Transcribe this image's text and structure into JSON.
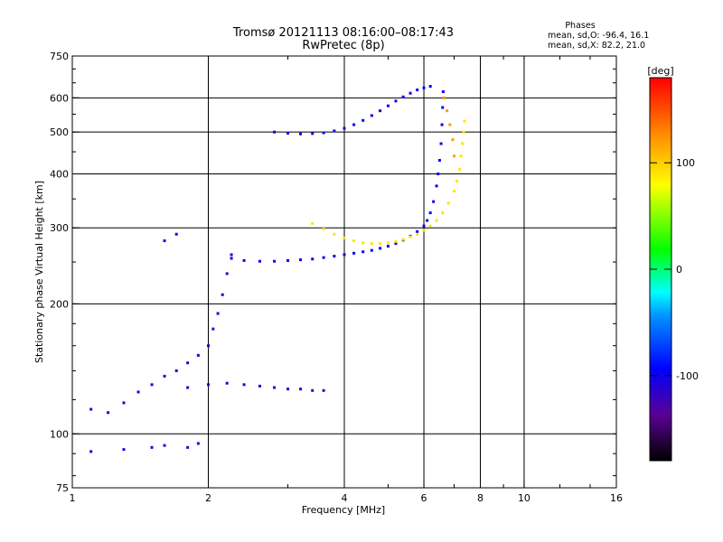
{
  "chart_data": {
    "type": "scatter",
    "title": "Tromsø 20121113 08:16:00–08:17:43",
    "subtitle": "RwPretec (8p)",
    "xlabel": "Frequency [MHz]",
    "ylabel": "Stationary phase Virtual Height [km]",
    "x_scale": "log",
    "y_scale": "log",
    "xlim": [
      1,
      16
    ],
    "ylim": [
      75,
      750
    ],
    "x_ticks": [
      {
        "value": 1,
        "label": "1"
      },
      {
        "value": 2,
        "label": "2"
      },
      {
        "value": 4,
        "label": "4"
      },
      {
        "value": 6,
        "label": "6"
      },
      {
        "value": 8,
        "label": "8"
      },
      {
        "value": 10,
        "label": "10"
      },
      {
        "value": 16,
        "label": "16"
      }
    ],
    "y_ticks": [
      {
        "value": 75,
        "label": "75"
      },
      {
        "value": 100,
        "label": "100"
      },
      {
        "value": 200,
        "label": "200"
      },
      {
        "value": 300,
        "label": "300"
      },
      {
        "value": 400,
        "label": "400"
      },
      {
        "value": 500,
        "label": "500"
      },
      {
        "value": 600,
        "label": "600"
      },
      {
        "value": 750,
        "label": "750"
      }
    ],
    "x_gridlines": [
      2,
      4,
      6,
      8,
      10
    ],
    "y_gridlines": [
      100,
      200,
      300,
      400,
      500,
      600
    ],
    "phase_stats": {
      "heading": "Phases",
      "line_o": "mean, sd,O: -96.4, 16.1",
      "line_x": "mean, sd,X:  82.2, 21.0"
    },
    "colorbar": {
      "label": "[deg]",
      "range": [
        -180,
        180
      ],
      "ticks": [
        {
          "value": 100,
          "label": "100"
        },
        {
          "value": 0,
          "label": "0"
        },
        {
          "value": -100,
          "label": "-100"
        }
      ]
    },
    "series": [
      {
        "kind": "O-mode F2 trace",
        "phase": -100,
        "points": [
          [
            2.25,
            255
          ],
          [
            2.4,
            252
          ],
          [
            2.6,
            251
          ],
          [
            2.8,
            251
          ],
          [
            3.0,
            252
          ],
          [
            3.2,
            253
          ],
          [
            3.4,
            254
          ],
          [
            3.6,
            256
          ],
          [
            3.8,
            258
          ],
          [
            4.0,
            260
          ],
          [
            4.2,
            262
          ],
          [
            4.4,
            264
          ],
          [
            4.6,
            266
          ],
          [
            4.8,
            269
          ],
          [
            5.0,
            272
          ],
          [
            5.2,
            276
          ],
          [
            5.4,
            281
          ],
          [
            5.6,
            287
          ],
          [
            5.8,
            294
          ],
          [
            6.0,
            303
          ],
          [
            6.1,
            312
          ],
          [
            6.2,
            325
          ],
          [
            6.3,
            345
          ],
          [
            6.4,
            375
          ],
          [
            6.45,
            400
          ],
          [
            6.5,
            430
          ],
          [
            6.55,
            470
          ],
          [
            6.58,
            520
          ],
          [
            6.6,
            570
          ],
          [
            6.62,
            620
          ]
        ]
      },
      {
        "kind": "X-mode F2 trace",
        "phase": 90,
        "points": [
          [
            3.4,
            307
          ],
          [
            3.6,
            298
          ],
          [
            3.8,
            290
          ],
          [
            4.0,
            284
          ],
          [
            4.2,
            280
          ],
          [
            4.4,
            277
          ],
          [
            4.6,
            276
          ],
          [
            4.8,
            276
          ],
          [
            5.0,
            277
          ],
          [
            5.2,
            279
          ],
          [
            5.4,
            282
          ],
          [
            5.6,
            286
          ],
          [
            5.8,
            290
          ],
          [
            6.0,
            296
          ],
          [
            6.2,
            303
          ],
          [
            6.4,
            312
          ],
          [
            6.6,
            325
          ],
          [
            6.8,
            342
          ],
          [
            7.0,
            365
          ],
          [
            7.1,
            385
          ],
          [
            7.2,
            410
          ],
          [
            7.25,
            440
          ],
          [
            7.3,
            470
          ],
          [
            7.35,
            500
          ],
          [
            7.38,
            530
          ]
        ]
      },
      {
        "kind": "O-mode multiple reflection",
        "phase": -100,
        "points": [
          [
            2.8,
            500
          ],
          [
            3.0,
            497
          ],
          [
            3.2,
            495
          ],
          [
            3.4,
            496
          ],
          [
            3.6,
            498
          ],
          [
            3.8,
            503
          ],
          [
            4.0,
            510
          ],
          [
            4.2,
            520
          ],
          [
            4.4,
            532
          ],
          [
            4.6,
            546
          ],
          [
            4.8,
            560
          ],
          [
            5.0,
            575
          ],
          [
            5.2,
            590
          ],
          [
            5.4,
            603
          ],
          [
            5.6,
            615
          ],
          [
            5.8,
            626
          ],
          [
            6.0,
            633
          ],
          [
            6.2,
            638
          ]
        ]
      },
      {
        "kind": "X-mode near-critical trace",
        "phase": 120,
        "points": [
          [
            6.65,
            600
          ],
          [
            6.75,
            560
          ],
          [
            6.85,
            520
          ],
          [
            6.95,
            480
          ],
          [
            7.0,
            440
          ]
        ]
      },
      {
        "kind": "Sporadic / low-frequency echoes",
        "phase": -110,
        "points": [
          [
            1.1,
            114
          ],
          [
            1.2,
            112
          ],
          [
            1.3,
            118
          ],
          [
            1.4,
            125
          ],
          [
            1.5,
            130
          ],
          [
            1.6,
            136
          ],
          [
            1.7,
            140
          ],
          [
            1.8,
            146
          ],
          [
            1.9,
            152
          ],
          [
            2.0,
            160
          ],
          [
            2.05,
            175
          ],
          [
            2.1,
            190
          ],
          [
            2.15,
            210
          ],
          [
            2.2,
            235
          ],
          [
            2.25,
            260
          ],
          [
            1.8,
            128
          ],
          [
            2.0,
            130
          ],
          [
            2.2,
            131
          ],
          [
            2.4,
            130
          ],
          [
            2.6,
            129
          ],
          [
            2.8,
            128
          ],
          [
            3.0,
            127
          ],
          [
            3.2,
            127
          ],
          [
            3.4,
            126
          ],
          [
            3.6,
            126
          ],
          [
            1.3,
            92
          ],
          [
            1.5,
            93
          ],
          [
            1.6,
            94
          ],
          [
            1.8,
            93
          ],
          [
            1.9,
            95
          ],
          [
            1.1,
            91
          ],
          [
            1.6,
            280
          ],
          [
            1.7,
            290
          ]
        ]
      }
    ]
  }
}
